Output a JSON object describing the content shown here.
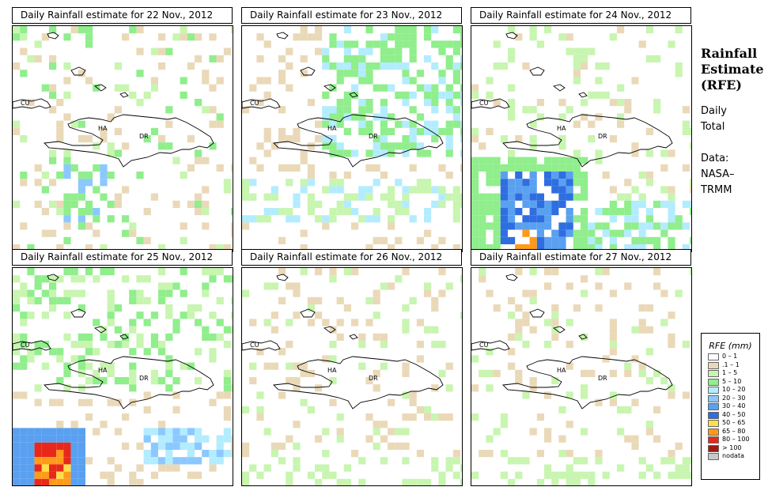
{
  "panels": [
    {
      "title": "Daily Rainfall estimate for  22 Nov., 2012",
      "seed": 22,
      "intensity": "light"
    },
    {
      "title": "Daily Rainfall estimate for  23 Nov., 2012",
      "seed": 23,
      "intensity": "moderate"
    },
    {
      "title": "Daily Rainfall estimate for  24 Nov., 2012",
      "seed": 24,
      "intensity": "heavy_sw"
    },
    {
      "title": "Daily Rainfall estimate for  25 Nov., 2012",
      "seed": 25,
      "intensity": "very_heavy_sw"
    },
    {
      "title": "Daily Rainfall estimate for  26 Nov., 2012",
      "seed": 26,
      "intensity": "sparse"
    },
    {
      "title": "Daily Rainfall estimate for  27 Nov., 2012",
      "seed": 27,
      "intensity": "sparse"
    }
  ],
  "country_labels": {
    "cuba": "CU",
    "haiti": "HA",
    "dominican_republic": "DR"
  },
  "sidebar": {
    "title_lines": [
      "Rainfall",
      "Estimate",
      "(RFE)"
    ],
    "subtitle_lines": [
      "Daily",
      "Total"
    ],
    "data_lines": [
      "Data:",
      "NASA–",
      "TRMM"
    ]
  },
  "legend": {
    "title": "RFE (mm)",
    "items": [
      {
        "label": "0 – 1",
        "color": "#ffffff"
      },
      {
        "label": ".1 – 1",
        "color": "#ead9b8"
      },
      {
        "label": "1 – 5",
        "color": "#c8f5b0"
      },
      {
        "label": "5 – 10",
        "color": "#90ee8c"
      },
      {
        "label": "10 – 20",
        "color": "#b3ecff"
      },
      {
        "label": "20 – 30",
        "color": "#8cc8ff"
      },
      {
        "label": "30 – 40",
        "color": "#5aa0f0"
      },
      {
        "label": "40 – 50",
        "color": "#2e6ee0"
      },
      {
        "label": "50 – 65",
        "color": "#ffe04a"
      },
      {
        "label": "65 – 80",
        "color": "#ff9a1a"
      },
      {
        "label": "80 – 100",
        "color": "#e8281a"
      },
      {
        "label": "> 100",
        "color": "#a01a14"
      },
      {
        "label": "nodata",
        "color": "#c8c8c8"
      }
    ]
  }
}
